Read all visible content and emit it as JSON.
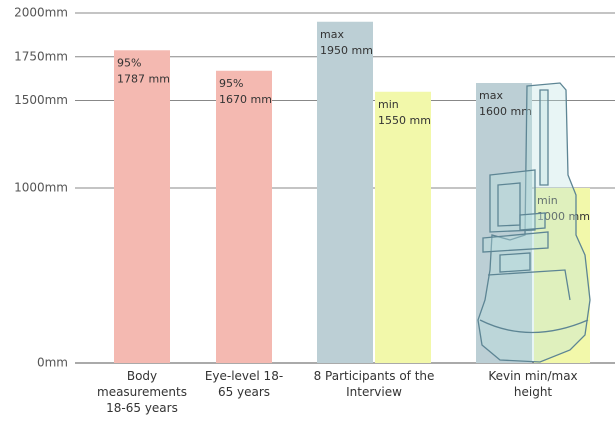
{
  "chart_data": {
    "type": "bar",
    "categories": [
      "Body measurements 18-65 years",
      "Eye-level 18-65 years",
      "8 Participants of the Interview",
      "Kevin min/max height"
    ],
    "series": [
      {
        "color": "#f4b9b1",
        "values": [
          1787,
          1670,
          null,
          null
        ],
        "value_notes": [
          "95%",
          "95%",
          null,
          null
        ],
        "value_labels": [
          "1787 mm",
          "1670 mm",
          null,
          null
        ]
      },
      {
        "color": "#bccfd5",
        "values": [
          null,
          null,
          1950,
          1600
        ],
        "value_notes": [
          null,
          null,
          "max",
          "max"
        ],
        "value_labels": [
          null,
          null,
          "1950 mm",
          "1600 mm"
        ]
      },
      {
        "color": "#f2f8aa",
        "values": [
          null,
          null,
          1550,
          1000
        ],
        "value_notes": [
          null,
          null,
          "min",
          "min"
        ],
        "value_labels": [
          null,
          null,
          "1550 mm",
          "1000 mm"
        ]
      }
    ],
    "ylim": [
      0,
      2000
    ],
    "yticks": [
      {
        "value": 0,
        "label": "0mm"
      },
      {
        "value": 1000,
        "label": "1000mm"
      },
      {
        "value": 1500,
        "label": "1500mm"
      },
      {
        "value": 1750,
        "label": "1750mm"
      },
      {
        "value": 2000,
        "label": "2000mm"
      }
    ],
    "grid": true
  }
}
